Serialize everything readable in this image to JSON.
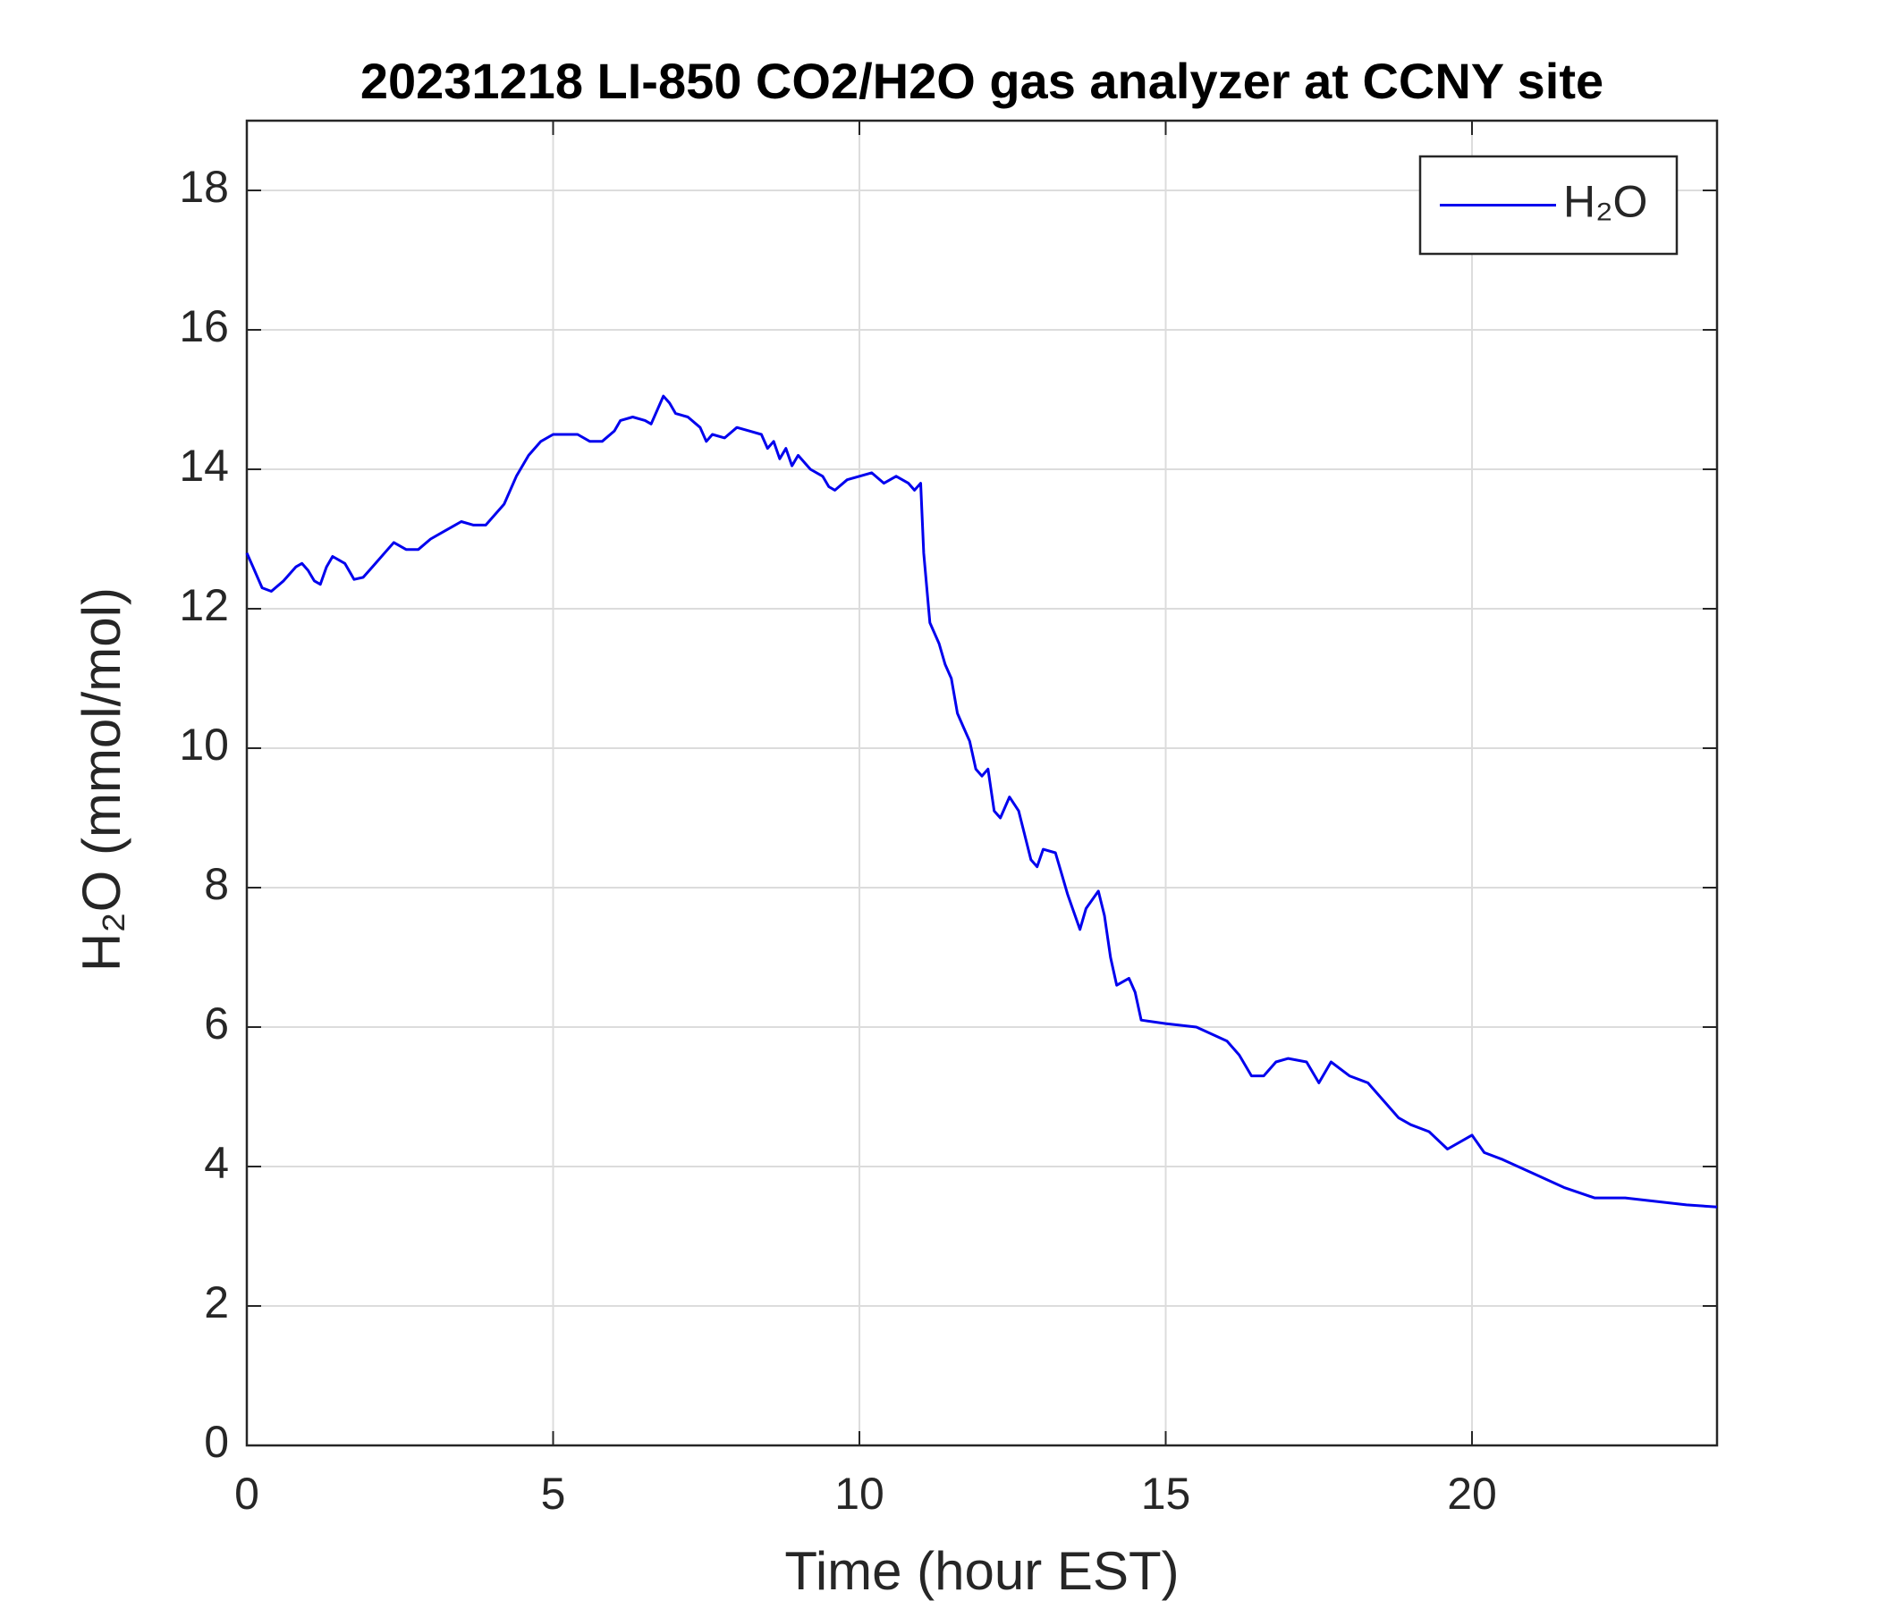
{
  "chart_data": {
    "type": "line",
    "title": "20231218 LI-850 CO2/H2O gas analyzer at CCNY site",
    "xlabel": "Time (hour EST)",
    "ylabel": "H₂O (mmol/mol)",
    "x": [
      0,
      0.1,
      0.25,
      0.4,
      0.6,
      0.8,
      0.9,
      1.0,
      1.1,
      1.2,
      1.3,
      1.4,
      1.6,
      1.7,
      1.75,
      1.9,
      2.1,
      2.3,
      2.4,
      2.6,
      2.8,
      3.0,
      3.2,
      3.4,
      3.5,
      3.7,
      3.9,
      4.0,
      4.2,
      4.4,
      4.6,
      4.8,
      5.0,
      5.2,
      5.4,
      5.6,
      5.8,
      6.0,
      6.1,
      6.3,
      6.5,
      6.6,
      6.8,
      6.9,
      7.0,
      7.2,
      7.4,
      7.5,
      7.6,
      7.8,
      8.0,
      8.2,
      8.4,
      8.5,
      8.6,
      8.7,
      8.8,
      8.9,
      9.0,
      9.2,
      9.4,
      9.5,
      9.6,
      9.8,
      10.0,
      10.2,
      10.4,
      10.6,
      10.8,
      10.9,
      11.0,
      11.05,
      11.15,
      11.3,
      11.4,
      11.5,
      11.6,
      11.7,
      11.8,
      11.9,
      12.0,
      12.1,
      12.2,
      12.3,
      12.45,
      12.6,
      12.8,
      12.9,
      13.0,
      13.2,
      13.3,
      13.4,
      13.6,
      13.7,
      13.9,
      14.0,
      14.1,
      14.2,
      14.4,
      14.5,
      14.6,
      15.0,
      15.5,
      16.0,
      16.2,
      16.4,
      16.6,
      16.8,
      17.0,
      17.3,
      17.5,
      17.7,
      18.0,
      18.3,
      18.6,
      18.8,
      19.0,
      19.3,
      19.6,
      20.0,
      20.2,
      20.5,
      21.0,
      21.5,
      22.0,
      22.5,
      23.0,
      23.5,
      24.0
    ],
    "series": [
      {
        "name": "H₂O",
        "color": "#0000ee",
        "values": [
          12.8,
          12.6,
          12.3,
          12.25,
          12.4,
          12.6,
          12.65,
          12.55,
          12.4,
          12.35,
          12.6,
          12.75,
          12.65,
          12.5,
          12.42,
          12.45,
          12.65,
          12.85,
          12.95,
          12.85,
          12.85,
          13.0,
          13.1,
          13.2,
          13.25,
          13.2,
          13.2,
          13.3,
          13.5,
          13.9,
          14.2,
          14.4,
          14.5,
          14.5,
          14.5,
          14.4,
          14.4,
          14.55,
          14.7,
          14.75,
          14.7,
          14.65,
          15.05,
          14.95,
          14.8,
          14.75,
          14.6,
          14.4,
          14.5,
          14.45,
          14.6,
          14.55,
          14.5,
          14.3,
          14.4,
          14.15,
          14.3,
          14.05,
          14.2,
          14.0,
          13.9,
          13.75,
          13.7,
          13.85,
          13.9,
          13.95,
          13.8,
          13.9,
          13.8,
          13.7,
          13.8,
          12.8,
          11.8,
          11.5,
          11.2,
          11.0,
          10.5,
          10.3,
          10.1,
          9.7,
          9.6,
          9.7,
          9.1,
          9.0,
          9.3,
          9.1,
          8.4,
          8.3,
          8.55,
          8.5,
          8.2,
          7.9,
          7.4,
          7.7,
          7.95,
          7.6,
          7.0,
          6.6,
          6.7,
          6.5,
          6.1,
          6.05,
          6.0,
          5.8,
          5.6,
          5.3,
          5.3,
          5.5,
          5.55,
          5.5,
          5.2,
          5.5,
          5.3,
          5.2,
          4.9,
          4.7,
          4.6,
          4.5,
          4.25,
          4.45,
          4.2,
          4.1,
          3.9,
          3.7,
          3.55,
          3.55,
          3.5,
          3.45,
          3.42
        ]
      }
    ],
    "xlim": [
      0,
      24
    ],
    "xticks": [
      0,
      5,
      10,
      15,
      20
    ],
    "ylim": [
      0,
      19
    ],
    "yticks": [
      0,
      2,
      4,
      6,
      8,
      10,
      12,
      14,
      16,
      18
    ],
    "grid": true,
    "legend": "upper right"
  }
}
